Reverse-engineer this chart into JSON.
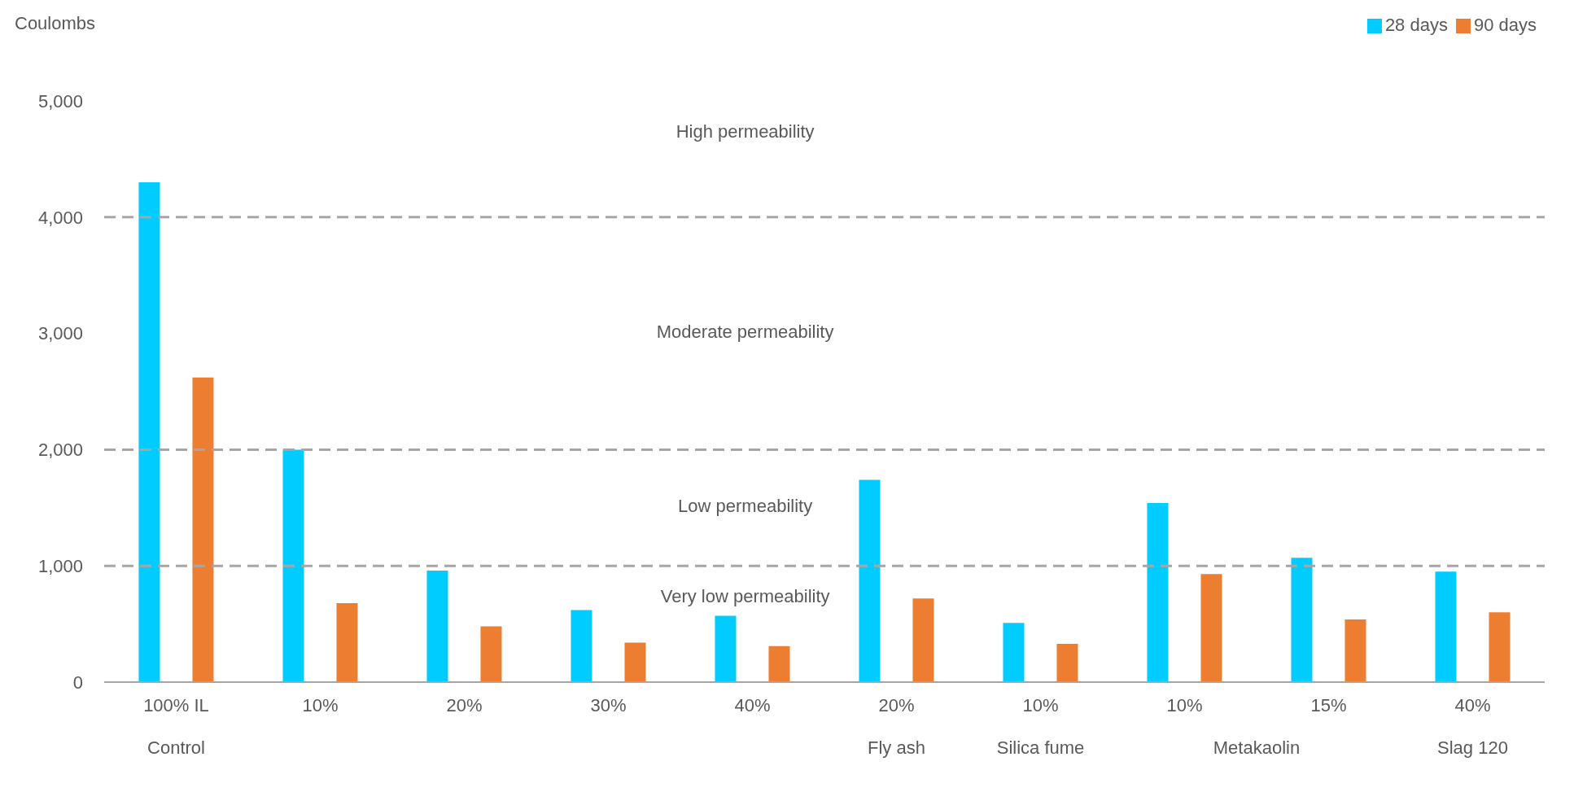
{
  "chart_data": {
    "type": "bar",
    "ylabel": "Coulombs",
    "categories": [
      "100% IL",
      "10%",
      "20%",
      "30%",
      "40%",
      "20%",
      "10%",
      "10%",
      "15%",
      "40%"
    ],
    "series": [
      {
        "name": "28 days",
        "color": "#00ccff",
        "values": [
          4300,
          2000,
          960,
          620,
          570,
          1740,
          510,
          1540,
          1070,
          950
        ]
      },
      {
        "name": "90 days",
        "color": "#ed7d31",
        "values": [
          2620,
          680,
          480,
          340,
          310,
          720,
          330,
          930,
          540,
          600
        ]
      }
    ],
    "ylim": [
      0,
      5000
    ],
    "yticks": [
      0,
      {
        "value": 1000,
        "label": "1,000"
      },
      {
        "value": 2000,
        "label": "2,000"
      },
      {
        "value": 3000,
        "label": "3,000"
      },
      {
        "value": 4000,
        "label": "4,000"
      },
      {
        "value": 5000,
        "label": "5,000"
      }
    ],
    "ref_lines": [
      {
        "axis": "y",
        "value": 1000,
        "color": "#a6a6a6",
        "line_style": "dashed"
      },
      {
        "axis": "y",
        "value": 2000,
        "color": "#a6a6a6",
        "line_style": "dashed"
      },
      {
        "axis": "y",
        "value": 4000,
        "color": "#a6a6a6",
        "line_style": "dashed"
      }
    ],
    "annotations": [
      "High permeability",
      "Moderate permeability",
      "Low permeability",
      "Very low permeability",
      "Control",
      "Fly ash",
      "Silica fume",
      "Metakaolin",
      "Slag 120"
    ],
    "grid": false,
    "legend": "top right"
  }
}
